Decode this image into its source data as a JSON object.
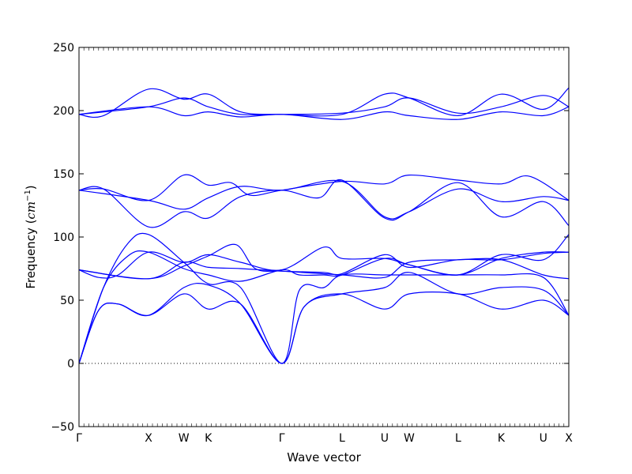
{
  "chart_data": {
    "type": "line",
    "title": "",
    "xlabel": "Wave vector",
    "ylabel_text": "Frequency (",
    "ylabel_unit_base": "cm",
    "ylabel_unit_exp": "−1",
    "ylabel_close": ")",
    "ylim": [
      -50,
      250
    ],
    "yticks": [
      "250",
      "200",
      "150",
      "100",
      "50",
      "0",
      "−50"
    ],
    "ytick_values": [
      250,
      200,
      150,
      100,
      50,
      0,
      -50
    ],
    "xlim": [
      0,
      1
    ],
    "xtick_labels": [
      "Γ",
      "X",
      "W",
      "K",
      "Γ",
      "L",
      "U",
      "W",
      "L",
      "K",
      "U",
      "X"
    ],
    "xtick_positions": [
      0.0,
      0.142,
      0.214,
      0.264,
      0.414,
      0.537,
      0.624,
      0.674,
      0.774,
      0.862,
      0.948,
      1.0
    ],
    "zero_line": "dotted",
    "line_color": "#0000ff",
    "series": [
      {
        "values": [
          [
            0,
            0
          ],
          [
            0.04,
            42
          ],
          [
            0.08,
            47
          ],
          [
            0.142,
            38
          ],
          [
            0.214,
            55
          ],
          [
            0.264,
            43
          ],
          [
            0.33,
            47
          ],
          [
            0.414,
            0
          ],
          [
            0.46,
            45
          ],
          [
            0.537,
            55
          ],
          [
            0.624,
            43
          ],
          [
            0.674,
            55
          ],
          [
            0.774,
            55
          ],
          [
            0.862,
            43
          ],
          [
            0.948,
            50
          ],
          [
            1.0,
            38
          ]
        ]
      },
      {
        "values": [
          [
            0,
            0
          ],
          [
            0.04,
            42
          ],
          [
            0.08,
            47
          ],
          [
            0.142,
            38
          ],
          [
            0.214,
            60
          ],
          [
            0.264,
            62
          ],
          [
            0.33,
            47
          ],
          [
            0.414,
            0
          ],
          [
            0.46,
            45
          ],
          [
            0.537,
            55
          ],
          [
            0.624,
            60
          ],
          [
            0.674,
            72
          ],
          [
            0.774,
            55
          ],
          [
            0.862,
            60
          ],
          [
            0.948,
            58
          ],
          [
            1.0,
            38
          ]
        ]
      },
      {
        "values": [
          [
            0,
            0
          ],
          [
            0.05,
            60
          ],
          [
            0.1,
            95
          ],
          [
            0.142,
            102
          ],
          [
            0.214,
            80
          ],
          [
            0.264,
            63
          ],
          [
            0.33,
            60
          ],
          [
            0.414,
            0
          ],
          [
            0.45,
            58
          ],
          [
            0.5,
            60
          ],
          [
            0.537,
            70
          ],
          [
            0.624,
            70
          ],
          [
            0.674,
            70
          ],
          [
            0.774,
            70
          ],
          [
            0.862,
            70
          ],
          [
            0.948,
            68
          ],
          [
            1.0,
            38
          ]
        ]
      },
      {
        "values": [
          [
            0,
            0
          ],
          [
            0.05,
            60
          ],
          [
            0.1,
            85
          ],
          [
            0.142,
            88
          ],
          [
            0.214,
            75
          ],
          [
            0.264,
            70
          ],
          [
            0.33,
            65
          ],
          [
            0.414,
            74
          ],
          [
            0.45,
            70
          ],
          [
            0.5,
            70
          ],
          [
            0.537,
            70
          ],
          [
            0.624,
            83
          ],
          [
            0.674,
            78
          ],
          [
            0.774,
            70
          ],
          [
            0.862,
            83
          ],
          [
            0.948,
            88
          ],
          [
            1.0,
            88
          ]
        ]
      },
      {
        "values": [
          [
            0,
            74
          ],
          [
            0.04,
            68
          ],
          [
            0.08,
            70
          ],
          [
            0.142,
            88
          ],
          [
            0.214,
            80
          ],
          [
            0.264,
            86
          ],
          [
            0.33,
            80
          ],
          [
            0.414,
            74
          ],
          [
            0.5,
            92
          ],
          [
            0.537,
            83
          ],
          [
            0.624,
            83
          ],
          [
            0.674,
            78
          ],
          [
            0.774,
            70
          ],
          [
            0.862,
            86
          ],
          [
            0.948,
            82
          ],
          [
            1.0,
            102
          ]
        ]
      },
      {
        "values": [
          [
            0,
            74
          ],
          [
            0.142,
            67
          ],
          [
            0.214,
            77
          ],
          [
            0.264,
            85
          ],
          [
            0.32,
            94
          ],
          [
            0.36,
            75
          ],
          [
            0.414,
            73
          ],
          [
            0.5,
            72
          ],
          [
            0.537,
            71
          ],
          [
            0.624,
            86
          ],
          [
            0.674,
            76
          ],
          [
            0.774,
            82
          ],
          [
            0.862,
            82
          ],
          [
            0.948,
            87
          ],
          [
            1.0,
            88
          ]
        ]
      },
      {
        "values": [
          [
            0,
            74
          ],
          [
            0.142,
            67
          ],
          [
            0.214,
            80
          ],
          [
            0.264,
            76
          ],
          [
            0.33,
            75
          ],
          [
            0.414,
            73
          ],
          [
            0.537,
            70
          ],
          [
            0.624,
            68
          ],
          [
            0.674,
            80
          ],
          [
            0.774,
            82
          ],
          [
            0.862,
            82
          ],
          [
            0.948,
            70
          ],
          [
            1.0,
            67
          ]
        ]
      },
      {
        "values": [
          [
            0,
            137
          ],
          [
            0.05,
            138
          ],
          [
            0.142,
            108
          ],
          [
            0.214,
            120
          ],
          [
            0.264,
            115
          ],
          [
            0.33,
            132
          ],
          [
            0.414,
            137
          ],
          [
            0.49,
            131
          ],
          [
            0.537,
            145
          ],
          [
            0.624,
            115
          ],
          [
            0.674,
            120
          ],
          [
            0.774,
            143
          ],
          [
            0.862,
            116
          ],
          [
            0.948,
            128
          ],
          [
            1.0,
            109
          ]
        ]
      },
      {
        "values": [
          [
            0,
            137
          ],
          [
            0.142,
            129
          ],
          [
            0.214,
            122
          ],
          [
            0.264,
            131
          ],
          [
            0.33,
            140
          ],
          [
            0.414,
            137
          ],
          [
            0.537,
            144
          ],
          [
            0.624,
            116
          ],
          [
            0.674,
            120
          ],
          [
            0.774,
            138
          ],
          [
            0.862,
            128
          ],
          [
            0.948,
            132
          ],
          [
            1.0,
            129
          ]
        ]
      },
      {
        "values": [
          [
            0,
            137
          ],
          [
            0.05,
            138
          ],
          [
            0.142,
            129
          ],
          [
            0.214,
            149
          ],
          [
            0.264,
            141
          ],
          [
            0.31,
            143
          ],
          [
            0.35,
            133
          ],
          [
            0.414,
            137
          ],
          [
            0.537,
            144
          ],
          [
            0.624,
            142
          ],
          [
            0.674,
            149
          ],
          [
            0.774,
            145
          ],
          [
            0.862,
            142
          ],
          [
            0.92,
            148
          ],
          [
            1.0,
            129
          ]
        ]
      },
      {
        "values": [
          [
            0,
            197
          ],
          [
            0.05,
            196
          ],
          [
            0.142,
            217
          ],
          [
            0.214,
            209
          ],
          [
            0.264,
            213
          ],
          [
            0.33,
            199
          ],
          [
            0.414,
            197
          ],
          [
            0.537,
            197
          ],
          [
            0.624,
            213
          ],
          [
            0.674,
            210
          ],
          [
            0.774,
            196
          ],
          [
            0.862,
            213
          ],
          [
            0.948,
            201
          ],
          [
            1.0,
            218
          ]
        ]
      },
      {
        "values": [
          [
            0,
            197
          ],
          [
            0.142,
            203
          ],
          [
            0.214,
            196
          ],
          [
            0.264,
            199
          ],
          [
            0.33,
            195
          ],
          [
            0.414,
            197
          ],
          [
            0.537,
            193
          ],
          [
            0.624,
            199
          ],
          [
            0.674,
            196
          ],
          [
            0.774,
            193
          ],
          [
            0.862,
            199
          ],
          [
            0.948,
            196
          ],
          [
            1.0,
            203
          ]
        ]
      },
      {
        "values": [
          [
            0,
            197
          ],
          [
            0.142,
            203
          ],
          [
            0.214,
            210
          ],
          [
            0.264,
            203
          ],
          [
            0.33,
            197
          ],
          [
            0.414,
            197
          ],
          [
            0.537,
            198
          ],
          [
            0.624,
            203
          ],
          [
            0.674,
            210
          ],
          [
            0.774,
            198
          ],
          [
            0.862,
            203
          ],
          [
            0.948,
            212
          ],
          [
            1.0,
            203
          ]
        ]
      }
    ]
  }
}
